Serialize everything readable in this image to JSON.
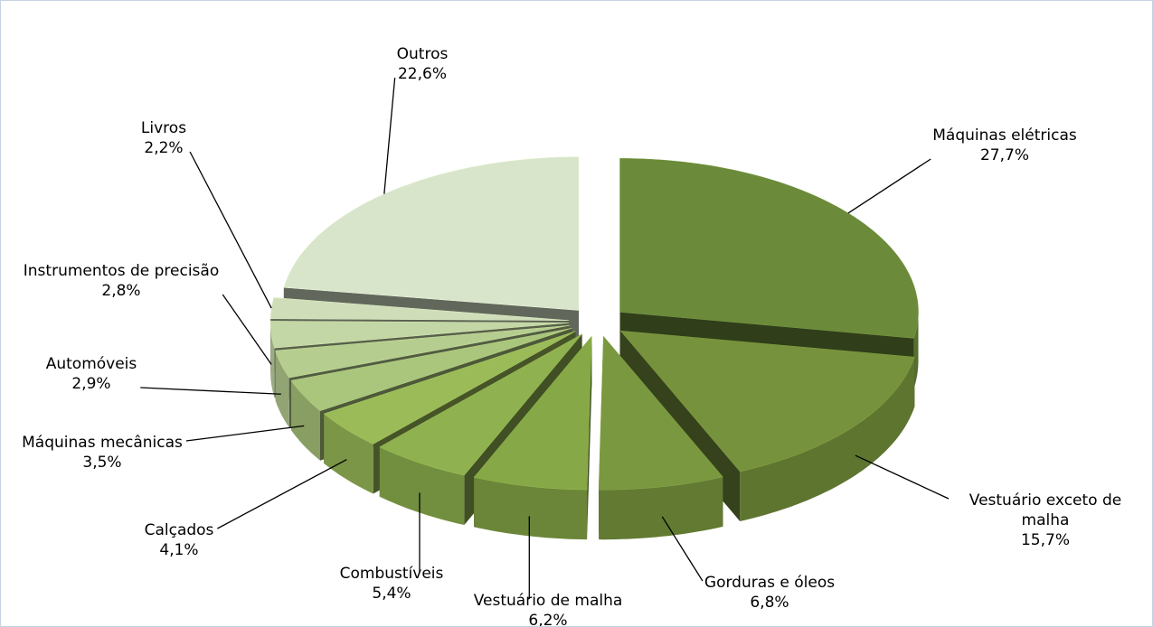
{
  "chart_data": {
    "type": "pie3d",
    "categories": [
      "Máquinas elétricas",
      "Vestuário exceto de malha",
      "Gorduras e óleos",
      "Vestuário de malha",
      "Combustíveis",
      "Calçados",
      "Máquinas mecânicas",
      "Automóveis",
      "Instrumentos de precisão",
      "Livros",
      "Outros"
    ],
    "values": [
      27.7,
      15.7,
      6.8,
      6.2,
      5.4,
      4.1,
      3.5,
      2.9,
      2.8,
      2.2,
      22.6
    ],
    "value_labels": [
      "27,7%",
      "15,7%",
      "6,8%",
      "6,2%",
      "5,4%",
      "4,1%",
      "3,5%",
      "2,9%",
      "2,8%",
      "2,2%",
      "22,6%"
    ],
    "colors": [
      "#6b8a3a",
      "#76923c",
      "#7a983f",
      "#86a846",
      "#8fb14f",
      "#9bbb59",
      "#aac57c",
      "#b6cd90",
      "#c3d6a5",
      "#cfdeb9",
      "#d9e5cb"
    ]
  }
}
